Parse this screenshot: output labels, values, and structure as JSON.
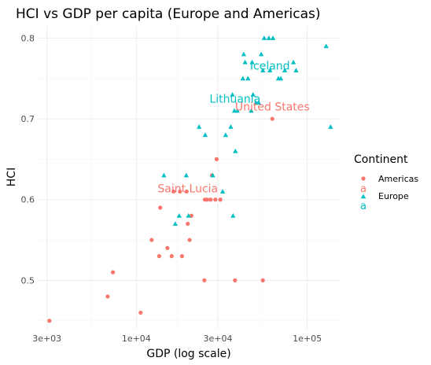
{
  "chart_data": {
    "type": "scatter",
    "title": "HCI vs GDP per capita (Europe and Americas)",
    "xlabel": "GDP (log scale)",
    "ylabel": "HCI",
    "x_scale": "log10",
    "xlim": [
      2650,
      155000
    ],
    "ylim": [
      0.44,
      0.815
    ],
    "x_ticks": [
      3000,
      10000,
      30000,
      100000
    ],
    "x_tick_labels": [
      "3e+03",
      "1e+04",
      "3e+04",
      "1e+05"
    ],
    "y_ticks": [
      0.5,
      0.6,
      0.7,
      0.8
    ],
    "y_tick_labels": [
      "0.5",
      "0.6",
      "0.7",
      "0.8"
    ],
    "grid": true,
    "legend": {
      "title": "Continent",
      "placement": "right",
      "entries": [
        "Americas",
        "Europe"
      ]
    },
    "colors": {
      "Americas": "#f8766d",
      "Europe": "#00bfc4"
    },
    "series": [
      {
        "name": "Americas",
        "marker": "circle",
        "points": [
          {
            "x": 3100,
            "y": 0.45
          },
          {
            "x": 6800,
            "y": 0.48
          },
          {
            "x": 7300,
            "y": 0.51
          },
          {
            "x": 10600,
            "y": 0.46
          },
          {
            "x": 12300,
            "y": 0.55
          },
          {
            "x": 13600,
            "y": 0.53
          },
          {
            "x": 13800,
            "y": 0.59
          },
          {
            "x": 15200,
            "y": 0.54
          },
          {
            "x": 16100,
            "y": 0.53
          },
          {
            "x": 16500,
            "y": 0.61
          },
          {
            "x": 18000,
            "y": 0.61
          },
          {
            "x": 18500,
            "y": 0.53
          },
          {
            "x": 19700,
            "y": 0.61
          },
          {
            "x": 20000,
            "y": 0.57
          },
          {
            "x": 20500,
            "y": 0.55
          },
          {
            "x": 21000,
            "y": 0.58
          },
          {
            "x": 25000,
            "y": 0.5
          },
          {
            "x": 25200,
            "y": 0.6
          },
          {
            "x": 26000,
            "y": 0.6
          },
          {
            "x": 27200,
            "y": 0.6
          },
          {
            "x": 27700,
            "y": 0.63
          },
          {
            "x": 29000,
            "y": 0.6
          },
          {
            "x": 29500,
            "y": 0.65
          },
          {
            "x": 31000,
            "y": 0.6
          },
          {
            "x": 37800,
            "y": 0.5
          },
          {
            "x": 55000,
            "y": 0.5
          },
          {
            "x": 62500,
            "y": 0.7
          }
        ]
      },
      {
        "name": "Europe",
        "marker": "triangle",
        "points": [
          {
            "x": 14500,
            "y": 0.63
          },
          {
            "x": 16900,
            "y": 0.57
          },
          {
            "x": 17800,
            "y": 0.58
          },
          {
            "x": 19600,
            "y": 0.63
          },
          {
            "x": 20200,
            "y": 0.58
          },
          {
            "x": 23300,
            "y": 0.69
          },
          {
            "x": 25300,
            "y": 0.68
          },
          {
            "x": 28000,
            "y": 0.63
          },
          {
            "x": 32000,
            "y": 0.61
          },
          {
            "x": 33300,
            "y": 0.68
          },
          {
            "x": 35700,
            "y": 0.69
          },
          {
            "x": 36500,
            "y": 0.73
          },
          {
            "x": 36800,
            "y": 0.58
          },
          {
            "x": 37500,
            "y": 0.71
          },
          {
            "x": 38000,
            "y": 0.66
          },
          {
            "x": 39000,
            "y": 0.71
          },
          {
            "x": 42000,
            "y": 0.75
          },
          {
            "x": 42500,
            "y": 0.78
          },
          {
            "x": 43300,
            "y": 0.77
          },
          {
            "x": 45000,
            "y": 0.75
          },
          {
            "x": 47000,
            "y": 0.71
          },
          {
            "x": 47600,
            "y": 0.77
          },
          {
            "x": 48200,
            "y": 0.73
          },
          {
            "x": 50000,
            "y": 0.72
          },
          {
            "x": 52000,
            "y": 0.72
          },
          {
            "x": 53800,
            "y": 0.78
          },
          {
            "x": 55000,
            "y": 0.76
          },
          {
            "x": 56000,
            "y": 0.8
          },
          {
            "x": 59600,
            "y": 0.8
          },
          {
            "x": 60500,
            "y": 0.76
          },
          {
            "x": 63000,
            "y": 0.8
          },
          {
            "x": 67800,
            "y": 0.75
          },
          {
            "x": 70000,
            "y": 0.75
          },
          {
            "x": 73800,
            "y": 0.76
          },
          {
            "x": 83000,
            "y": 0.77
          },
          {
            "x": 86000,
            "y": 0.76
          },
          {
            "x": 129000,
            "y": 0.79
          },
          {
            "x": 137000,
            "y": 0.69
          }
        ]
      }
    ],
    "annotations": [
      {
        "text": "Iceland",
        "series": "Europe",
        "x": 60500,
        "y": 0.766
      },
      {
        "text": "Lithuania",
        "series": "Europe",
        "x": 37800,
        "y": 0.725
      },
      {
        "text": "United States",
        "series": "Americas",
        "x": 62500,
        "y": 0.715
      },
      {
        "text": "Saint Lucia",
        "series": "Americas",
        "x": 20000,
        "y": 0.614
      }
    ]
  }
}
